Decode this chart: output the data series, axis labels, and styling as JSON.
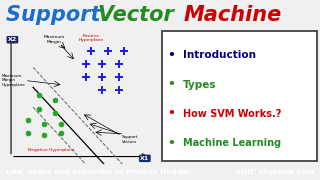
{
  "title_support": "Support ",
  "title_vector": "Vector ",
  "title_machine": "Machine",
  "title_color_support": "#1a6fcc",
  "title_color_vector": "#228B22",
  "title_color_machine": "#cc0000",
  "bg_color": "#f0f0f0",
  "footer_bg": "#5b5b8a",
  "footer_text": "Like, Share and Subscribe to Mahesh Huddar",
  "footer_visit": "Visit: vtupulse.com",
  "footer_color": "#ffffff",
  "bullet_items": [
    "Introduction",
    "Types",
    "How SVM Works.?",
    "Machine Learning"
  ],
  "bullet_colors": [
    "#000080",
    "#228B22",
    "#cc0000",
    "#228B22"
  ],
  "axis_label_bg": "#1a2a6a",
  "axis_label_text": "#ffffff",
  "x2_label": "X2",
  "x1_label": "X1",
  "label_maximum_margin": "Maximum\nMargin",
  "label_positive_hyper": "Positive\nHyperplane",
  "label_negative_hyper": "Negative Hyperplane",
  "label_max_margin_hyper": "Maximum\nMargin\nHyperplane",
  "label_support_vectors": "Support\nVectors",
  "green_color": "#22aa22",
  "blue_color": "#1a1aee",
  "green_points": [
    [
      0.14,
      0.38
    ],
    [
      0.2,
      0.35
    ],
    [
      0.14,
      0.3
    ],
    [
      0.2,
      0.28
    ],
    [
      0.1,
      0.24
    ],
    [
      0.16,
      0.22
    ],
    [
      0.22,
      0.22
    ],
    [
      0.1,
      0.17
    ],
    [
      0.16,
      0.16
    ],
    [
      0.22,
      0.17
    ]
  ],
  "blue_points": [
    [
      0.33,
      0.62
    ],
    [
      0.39,
      0.62
    ],
    [
      0.45,
      0.62
    ],
    [
      0.31,
      0.55
    ],
    [
      0.37,
      0.55
    ],
    [
      0.43,
      0.55
    ],
    [
      0.31,
      0.48
    ],
    [
      0.37,
      0.48
    ],
    [
      0.43,
      0.48
    ],
    [
      0.37,
      0.41
    ],
    [
      0.43,
      0.41
    ]
  ]
}
